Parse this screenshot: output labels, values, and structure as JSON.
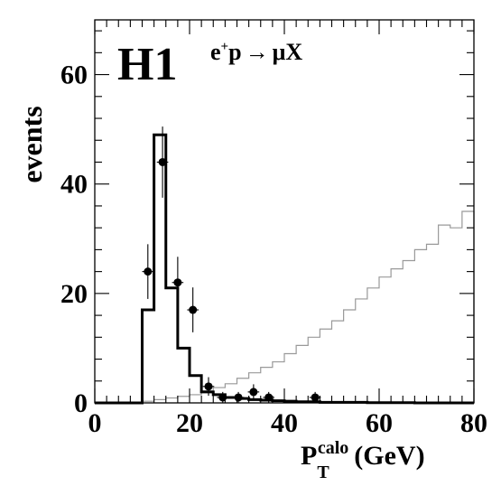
{
  "chart_data": {
    "type": "histogram",
    "experiment_label": "H1",
    "process_label": {
      "beam": "e",
      "beam_charge": "+",
      "target": "p",
      "arrow": "→",
      "muon": "μ",
      "final": "X"
    },
    "ylabel": "events",
    "xlabel": {
      "main": "P",
      "subscript": "T",
      "superscript": "calo",
      "unit": "(GeV)"
    },
    "xlim": [
      0,
      80
    ],
    "ylim": [
      0,
      70
    ],
    "x_ticks": [
      0,
      20,
      40,
      60,
      80
    ],
    "x_tick_labels": [
      "0",
      "20",
      "40",
      "60",
      "80"
    ],
    "y_ticks": [
      0,
      20,
      40,
      60
    ],
    "y_tick_labels": [
      "0",
      "20",
      "40",
      "60"
    ],
    "grid": false,
    "bin_edges": [
      0,
      2.5,
      5,
      7.5,
      10,
      12.5,
      15,
      17.5,
      20,
      22.5,
      25,
      27.5,
      30,
      32.5,
      35,
      37.5,
      40,
      42.5,
      45,
      47.5,
      50,
      52.5,
      55,
      57.5,
      60,
      62.5,
      65,
      67.5,
      70,
      72.5,
      75,
      77.5,
      80
    ],
    "series": [
      {
        "style": "thick-step",
        "values": [
          0,
          0,
          0,
          0,
          17,
          49,
          21,
          10,
          5,
          2,
          1.5,
          1,
          0.8,
          0.6,
          0.5,
          0.4,
          0.3,
          0.2,
          0.2,
          0.1,
          0.1,
          0.1,
          0.1,
          0.05,
          0.05,
          0.05,
          0.05,
          0,
          0,
          0,
          0,
          0
        ]
      },
      {
        "style": "thin-step",
        "values": [
          0,
          0,
          0,
          0,
          0.3,
          0.6,
          0.9,
          1.2,
          1.5,
          2.2,
          2.8,
          3.5,
          4.5,
          5.5,
          6.5,
          7.5,
          9,
          10.5,
          12,
          13.5,
          15,
          17,
          19,
          21,
          23,
          24.5,
          26,
          28,
          29,
          32.5,
          32,
          35
        ]
      }
    ],
    "data_points": [
      {
        "x": 11.2,
        "y": 24,
        "x_err": 1.2,
        "y_err": 5
      },
      {
        "x": 14.3,
        "y": 44,
        "x_err": 1.2,
        "y_err": 6.5
      },
      {
        "x": 17.5,
        "y": 22,
        "x_err": 1.2,
        "y_err": 4.7
      },
      {
        "x": 20.7,
        "y": 17,
        "x_err": 1.2,
        "y_err": 4.1
      },
      {
        "x": 24,
        "y": 3,
        "x_err": 1.2,
        "y_err": 1.7
      },
      {
        "x": 27,
        "y": 1,
        "x_err": 1.2,
        "y_err": 1
      },
      {
        "x": 30.3,
        "y": 1,
        "x_err": 1.2,
        "y_err": 1
      },
      {
        "x": 33.5,
        "y": 2,
        "x_err": 1.2,
        "y_err": 1.4
      },
      {
        "x": 36.7,
        "y": 1,
        "x_err": 1.2,
        "y_err": 1
      },
      {
        "x": 46.5,
        "y": 1,
        "x_err": 1.2,
        "y_err": 1
      }
    ]
  }
}
